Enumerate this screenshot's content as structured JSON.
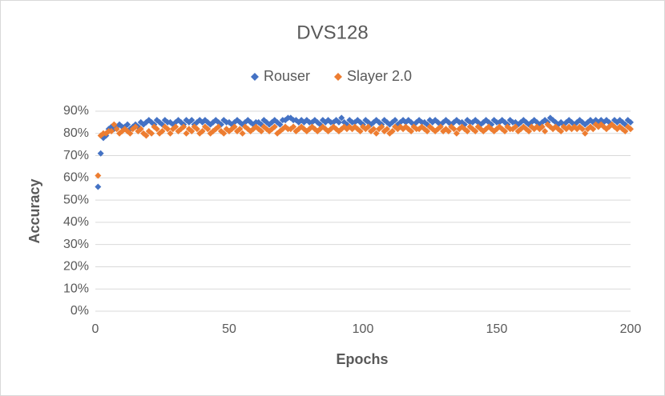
{
  "chart_data": {
    "type": "scatter",
    "title": "DVS128",
    "x_label": "Epochs",
    "y_label": "Accuracy",
    "x": [
      1,
      2,
      3,
      4,
      5,
      6,
      7,
      8,
      9,
      10,
      11,
      12,
      13,
      14,
      15,
      16,
      17,
      18,
      19,
      20,
      21,
      22,
      23,
      24,
      25,
      26,
      27,
      28,
      29,
      30,
      31,
      32,
      33,
      34,
      35,
      36,
      37,
      38,
      39,
      40,
      41,
      42,
      43,
      44,
      45,
      46,
      47,
      48,
      49,
      50,
      51,
      52,
      53,
      54,
      55,
      56,
      57,
      58,
      59,
      60,
      61,
      62,
      63,
      64,
      65,
      66,
      67,
      68,
      69,
      70,
      71,
      72,
      73,
      74,
      75,
      76,
      77,
      78,
      79,
      80,
      81,
      82,
      83,
      84,
      85,
      86,
      87,
      88,
      89,
      90,
      91,
      92,
      93,
      94,
      95,
      96,
      97,
      98,
      99,
      100,
      101,
      102,
      103,
      104,
      105,
      106,
      107,
      108,
      109,
      110,
      111,
      112,
      113,
      114,
      115,
      116,
      117,
      118,
      119,
      120,
      121,
      122,
      123,
      124,
      125,
      126,
      127,
      128,
      129,
      130,
      131,
      132,
      133,
      134,
      135,
      136,
      137,
      138,
      139,
      140,
      141,
      142,
      143,
      144,
      145,
      146,
      147,
      148,
      149,
      150,
      151,
      152,
      153,
      154,
      155,
      156,
      157,
      158,
      159,
      160,
      161,
      162,
      163,
      164,
      165,
      166,
      167,
      168,
      169,
      170,
      171,
      172,
      173,
      174,
      175,
      176,
      177,
      178,
      179,
      180,
      181,
      182,
      183,
      184,
      185,
      186,
      187,
      188,
      189,
      190,
      191,
      192,
      193,
      194,
      195,
      196,
      197,
      198,
      199,
      200
    ],
    "series": [
      {
        "name": "Rouser",
        "color": "#4472c4",
        "values": [
          56,
          71,
          78,
          79,
          82,
          83,
          82,
          83,
          84,
          83,
          83,
          84,
          82,
          83,
          84,
          83,
          85,
          84,
          85,
          86,
          85,
          84,
          86,
          85,
          84,
          86,
          85,
          85,
          84,
          85,
          86,
          85,
          84,
          86,
          85,
          86,
          84,
          85,
          86,
          85,
          86,
          85,
          84,
          85,
          86,
          85,
          84,
          86,
          85,
          85,
          84,
          85,
          86,
          85,
          84,
          85,
          86,
          85,
          84,
          85,
          85,
          84,
          86,
          85,
          84,
          85,
          86,
          85,
          84,
          86,
          86,
          87,
          87,
          86,
          86,
          85,
          86,
          85,
          86,
          85,
          85,
          86,
          85,
          84,
          86,
          85,
          86,
          85,
          85,
          86,
          85,
          87,
          85,
          84,
          86,
          85,
          85,
          86,
          85,
          84,
          86,
          85,
          84,
          85,
          86,
          85,
          84,
          86,
          85,
          84,
          85,
          86,
          84,
          85,
          86,
          85,
          86,
          85,
          84,
          85,
          86,
          85,
          85,
          84,
          86,
          85,
          86,
          85,
          84,
          85,
          86,
          85,
          84,
          85,
          86,
          85,
          85,
          84,
          86,
          85,
          85,
          86,
          85,
          84,
          85,
          86,
          85,
          84,
          86,
          85,
          85,
          86,
          85,
          84,
          86,
          85,
          85,
          84,
          85,
          86,
          85,
          84,
          85,
          86,
          85,
          84,
          85,
          86,
          85,
          87,
          86,
          85,
          84,
          85,
          84,
          85,
          86,
          85,
          84,
          85,
          86,
          85,
          84,
          85,
          86,
          85,
          86,
          85,
          86,
          85,
          86,
          85,
          84,
          86,
          85,
          86,
          85,
          84,
          86,
          85
        ]
      },
      {
        "name": "Slayer 2.0",
        "color": "#ed7d31",
        "values": [
          61,
          79,
          80,
          80,
          81,
          81,
          84,
          82,
          80,
          81,
          82,
          81,
          80,
          82,
          83,
          81,
          82,
          80,
          79,
          81,
          80,
          83,
          82,
          80,
          81,
          83,
          82,
          80,
          82,
          83,
          81,
          82,
          83,
          80,
          82,
          81,
          83,
          82,
          80,
          81,
          83,
          82,
          80,
          81,
          82,
          83,
          81,
          80,
          82,
          81,
          82,
          83,
          81,
          82,
          80,
          83,
          82,
          81,
          82,
          83,
          82,
          81,
          83,
          82,
          81,
          82,
          83,
          80,
          81,
          82,
          83,
          82,
          82,
          83,
          81,
          82,
          83,
          82,
          81,
          82,
          83,
          82,
          81,
          82,
          83,
          82,
          81,
          82,
          83,
          82,
          81,
          82,
          83,
          82,
          83,
          82,
          83,
          82,
          81,
          83,
          82,
          83,
          81,
          82,
          80,
          82,
          83,
          81,
          82,
          80,
          81,
          83,
          82,
          83,
          82,
          83,
          82,
          81,
          83,
          82,
          82,
          83,
          82,
          81,
          83,
          82,
          81,
          82,
          83,
          81,
          82,
          81,
          83,
          82,
          80,
          82,
          83,
          82,
          81,
          83,
          82,
          81,
          83,
          82,
          81,
          82,
          83,
          82,
          81,
          82,
          83,
          82,
          81,
          83,
          82,
          82,
          83,
          81,
          82,
          83,
          82,
          81,
          83,
          82,
          83,
          82,
          83,
          81,
          84,
          83,
          82,
          83,
          82,
          81,
          83,
          82,
          83,
          82,
          83,
          82,
          83,
          82,
          80,
          82,
          83,
          82,
          84,
          83,
          84,
          83,
          82,
          83,
          84,
          83,
          82,
          83,
          82,
          81,
          83,
          82
        ]
      }
    ],
    "xlim": [
      0,
      200
    ],
    "xticks": [
      0,
      50,
      100,
      150,
      200
    ],
    "ylim": [
      0,
      90
    ],
    "yticks": [
      {
        "value": 0,
        "label": "0%"
      },
      {
        "value": 10,
        "label": "10%"
      },
      {
        "value": 20,
        "label": "20%"
      },
      {
        "value": 30,
        "label": "30%"
      },
      {
        "value": 40,
        "label": "40%"
      },
      {
        "value": 50,
        "label": "50%"
      },
      {
        "value": 60,
        "label": "60%"
      },
      {
        "value": 70,
        "label": "70%"
      },
      {
        "value": 80,
        "label": "80%"
      },
      {
        "value": 90,
        "label": "90%"
      }
    ],
    "grid": true,
    "legend": "top"
  }
}
